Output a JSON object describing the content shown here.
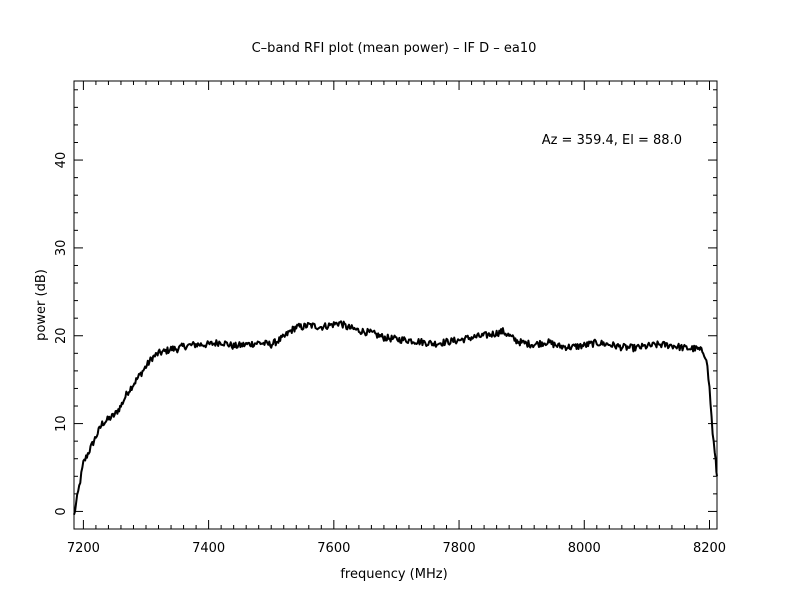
{
  "chart_data": {
    "type": "line",
    "title": "C–band RFI plot (mean power) – IF D – ea10",
    "xlabel": "frequency (MHz)",
    "ylabel": "power (dB)",
    "annotation": "Az = 359.4, El = 88.0",
    "xlim": [
      7185,
      8212
    ],
    "ylim": [
      -2,
      49
    ],
    "x_ticks": [
      7200,
      7400,
      7600,
      7800,
      8000,
      8200
    ],
    "y_ticks": [
      0,
      10,
      20,
      30,
      40
    ],
    "x_tick_labels": [
      "7200",
      "7400",
      "7600",
      "7800",
      "8000",
      "8200"
    ],
    "y_tick_labels": [
      "0",
      "10",
      "20",
      "30",
      "40"
    ],
    "grid": false,
    "series": [
      {
        "color": "#000000",
        "x": [
          7185,
          7190,
          7195,
          7200,
          7210,
          7220,
          7230,
          7240,
          7250,
          7260,
          7270,
          7280,
          7290,
          7300,
          7310,
          7320,
          7330,
          7340,
          7350,
          7360,
          7380,
          7400,
          7420,
          7440,
          7460,
          7480,
          7500,
          7510,
          7520,
          7530,
          7540,
          7550,
          7560,
          7580,
          7600,
          7610,
          7620,
          7630,
          7640,
          7660,
          7680,
          7700,
          7720,
          7740,
          7760,
          7780,
          7800,
          7820,
          7840,
          7860,
          7870,
          7880,
          7890,
          7900,
          7920,
          7940,
          7960,
          7980,
          8000,
          8020,
          8040,
          8060,
          8080,
          8100,
          8120,
          8140,
          8160,
          8180,
          8190,
          8195,
          8200,
          8205,
          8210,
          8212
        ],
        "y": [
          -0.5,
          1.5,
          3.5,
          5.5,
          7.0,
          8.5,
          10.0,
          10.5,
          11.0,
          12.0,
          13.5,
          14.5,
          15.5,
          16.5,
          17.5,
          18.0,
          18.2,
          18.5,
          18.5,
          18.8,
          19.0,
          19.0,
          19.3,
          18.8,
          19.0,
          19.2,
          19.0,
          19.4,
          19.8,
          20.5,
          21.0,
          21.0,
          21.2,
          21.0,
          21.3,
          21.5,
          21.0,
          20.8,
          20.6,
          20.3,
          19.8,
          19.6,
          19.5,
          19.3,
          19.1,
          19.3,
          19.5,
          19.8,
          20.0,
          20.3,
          20.5,
          20.0,
          19.5,
          19.2,
          19.0,
          19.3,
          18.8,
          18.7,
          18.9,
          19.2,
          19.0,
          18.7,
          18.6,
          18.8,
          19.0,
          18.9,
          18.6,
          18.5,
          18.2,
          17.5,
          14.0,
          9.0,
          5.5,
          4.0
        ]
      }
    ]
  }
}
